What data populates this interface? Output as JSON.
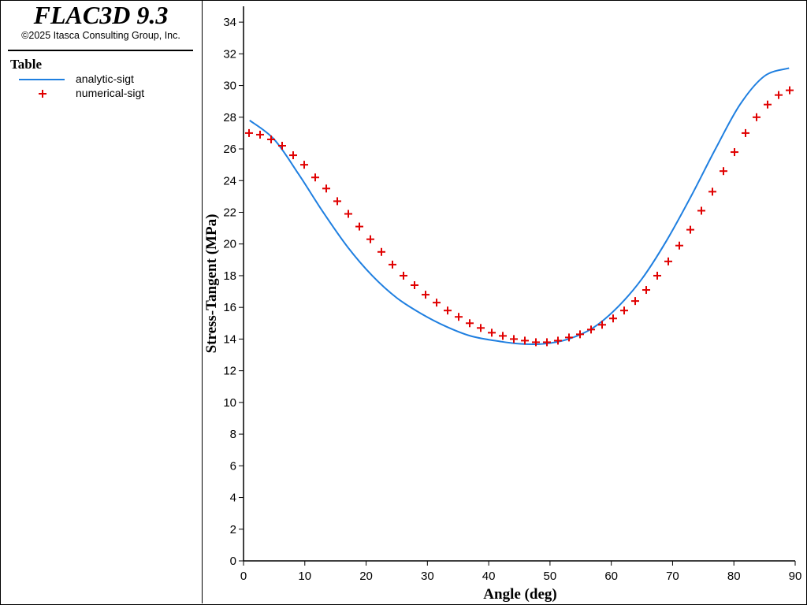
{
  "app": {
    "title": "FLAC3D 9.3",
    "copyright": "©2025 Itasca Consulting Group, Inc."
  },
  "legend": {
    "title": "Table",
    "entries": [
      {
        "label": "analytic-sigt",
        "marker": "line",
        "color": "#1f7fe0"
      },
      {
        "label": "numerical-sigt",
        "marker": "plus",
        "color": "#e00000"
      }
    ]
  },
  "chart_data": {
    "type": "scatter",
    "xlabel": "Angle (deg)",
    "ylabel": "Stress-Tangent (MPa)",
    "xlim": [
      0,
      90
    ],
    "ylim": [
      0,
      35
    ],
    "xticks": [
      0,
      10,
      20,
      30,
      40,
      50,
      60,
      70,
      80,
      90
    ],
    "yticks": [
      0,
      2,
      4,
      6,
      8,
      10,
      12,
      14,
      16,
      18,
      20,
      22,
      24,
      26,
      28,
      30,
      32,
      34
    ],
    "grid": false,
    "series": [
      {
        "name": "analytic-sigt",
        "kind": "line",
        "color": "#1f7fe0",
        "x": [
          1,
          5,
          9,
          13,
          17,
          21,
          25,
          29,
          33,
          37,
          41,
          45,
          49,
          53,
          57,
          61,
          65,
          69,
          73,
          77,
          81,
          85,
          89
        ],
        "y": [
          27.8,
          26.6,
          24.4,
          22.0,
          19.8,
          18.0,
          16.6,
          15.6,
          14.8,
          14.2,
          13.9,
          13.7,
          13.7,
          14.0,
          14.7,
          16.0,
          17.8,
          20.2,
          23.0,
          26.0,
          28.8,
          30.6,
          31.1
        ]
      },
      {
        "name": "numerical-sigt",
        "kind": "plus",
        "color": "#e00000",
        "x": [
          0.9,
          2.7,
          4.5,
          6.3,
          8.1,
          9.9,
          11.7,
          13.5,
          15.3,
          17.1,
          18.9,
          20.7,
          22.5,
          24.3,
          26.1,
          27.9,
          29.7,
          31.5,
          33.3,
          35.1,
          36.9,
          38.7,
          40.5,
          42.3,
          44.1,
          45.9,
          47.7,
          49.5,
          51.3,
          53.1,
          54.9,
          56.7,
          58.5,
          60.3,
          62.1,
          63.9,
          65.7,
          67.5,
          69.3,
          71.1,
          72.9,
          74.7,
          76.5,
          78.3,
          80.1,
          81.9,
          83.7,
          85.5,
          87.3,
          89.1
        ],
        "y": [
          27.0,
          26.9,
          26.6,
          26.2,
          25.6,
          25.0,
          24.2,
          23.5,
          22.7,
          21.9,
          21.1,
          20.3,
          19.5,
          18.7,
          18.0,
          17.4,
          16.8,
          16.3,
          15.8,
          15.4,
          15.0,
          14.7,
          14.4,
          14.2,
          14.0,
          13.9,
          13.8,
          13.8,
          13.9,
          14.1,
          14.3,
          14.6,
          14.9,
          15.3,
          15.8,
          16.4,
          17.1,
          18.0,
          18.9,
          19.9,
          20.9,
          22.1,
          23.3,
          24.6,
          25.8,
          27.0,
          28.0,
          28.8,
          29.4,
          29.7
        ]
      }
    ]
  }
}
